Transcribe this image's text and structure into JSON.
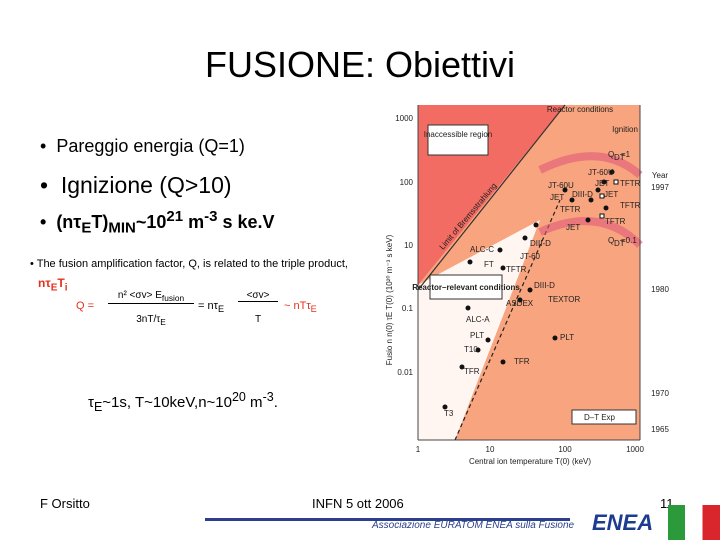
{
  "title": "FUSIONE: Obiettivi",
  "bullets": {
    "b1": "Pareggio energia (Q=1)",
    "b2": "Ignizione (Q>10)",
    "b3": [
      "(nτ",
      "E",
      "T)",
      "MIN",
      "~10",
      "21",
      " m",
      "-3",
      " s ke.V"
    ]
  },
  "note": {
    "intro": "The fusion amplification factor, Q, is related to the triple product,",
    "triple": [
      "nτ",
      "E",
      "T",
      "i"
    ],
    "formula": {
      "q": "Q =",
      "num": "n² <σv> E",
      "num_sub": "fusion",
      "den": "3nT/τ",
      "den_sub": "E",
      "eq": "= nτ",
      "eq_sub": "E",
      "frac2_num": "<σv>",
      "frac2_den": "T",
      "approx": "~ nTτ",
      "approx_sub": "E"
    }
  },
  "target": [
    "τ",
    "E",
    "~1s, T~10keV,n~10",
    "20",
    " m",
    "-3",
    "."
  ],
  "figure": {
    "y_label": "Fusio n n(0) τE T(0) (10²⁰ m⁻³ s keV)",
    "x_label": "Central ion temperature T(0) (keV)",
    "yticks": [
      "1000",
      "100",
      "10",
      "0.1",
      "0.01"
    ],
    "xticks": [
      "1",
      "10",
      "100",
      "1000"
    ],
    "year_label": "Year",
    "years": [
      "1997",
      "1980",
      "1970",
      "1965"
    ],
    "regions": {
      "inaccessible": "Inaccessible region",
      "reactor": "Reactor conditions",
      "ignition": "Ignition",
      "relevant": "Reactor–relevant conditions",
      "brems": "Limit of Bremsstrahlung",
      "q1": "Q",
      "q1_sub": "DT",
      "q1_val": "=1",
      "q01": "Q",
      "q01_sub": "DT",
      "q01_val": "=0.1"
    },
    "devices": [
      "JT-60U",
      "JET",
      "TFTR",
      "DIII-D",
      "JET",
      "TFTR",
      "JT-60U",
      "JET",
      "TFTR",
      "DIII-D",
      "JET",
      "TFTR",
      "JT-60",
      "ALC-C",
      "FT",
      "TFTR",
      "DIII-D",
      "ASDEX",
      "TEXTOR",
      "ALC-A",
      "PLT",
      "PLT",
      "T10",
      "TFR",
      "TFR",
      "T3"
    ],
    "legend": "D–T Exp"
  },
  "footer": {
    "author": "F Orsitto",
    "event": "INFN 5 ott 2006",
    "page": "11",
    "assoc": "Associazione EURATOM ENEA sulla Fusione",
    "logo": "ENEA"
  }
}
